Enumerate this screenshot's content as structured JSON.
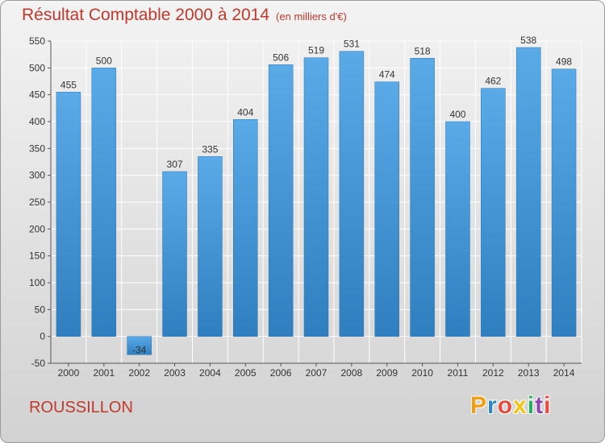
{
  "title": "Résultat Comptable 2000 à 2014",
  "subtitle": "(en milliers d'€)",
  "place": "ROUSSILLON",
  "logo": {
    "letters": [
      "P",
      "r",
      "o",
      "x",
      "i",
      "t",
      "i"
    ],
    "colors": [
      "#f39c12",
      "#2e86c1",
      "#e74c3c",
      "#f1c40f",
      "#27ae60",
      "#8e44ad",
      "#e74c3c"
    ]
  },
  "colors": {
    "bar": "#3d8fd3",
    "grid": "#ffffff",
    "title": "#c0392b"
  },
  "chart_data": {
    "type": "bar",
    "title": "Résultat Comptable 2000 à 2014",
    "subtitle": "(en milliers d'€)",
    "categories": [
      "2000",
      "2001",
      "2002",
      "2003",
      "2004",
      "2005",
      "2006",
      "2007",
      "2008",
      "2009",
      "2010",
      "2011",
      "2012",
      "2013",
      "2014"
    ],
    "values": [
      455,
      500,
      -34,
      307,
      335,
      404,
      506,
      519,
      531,
      474,
      518,
      400,
      462,
      538,
      498
    ],
    "ylim": [
      -50,
      550
    ],
    "yticks": [
      -50,
      0,
      50,
      100,
      150,
      200,
      250,
      300,
      350,
      400,
      450,
      500,
      550
    ],
    "grid": true
  }
}
